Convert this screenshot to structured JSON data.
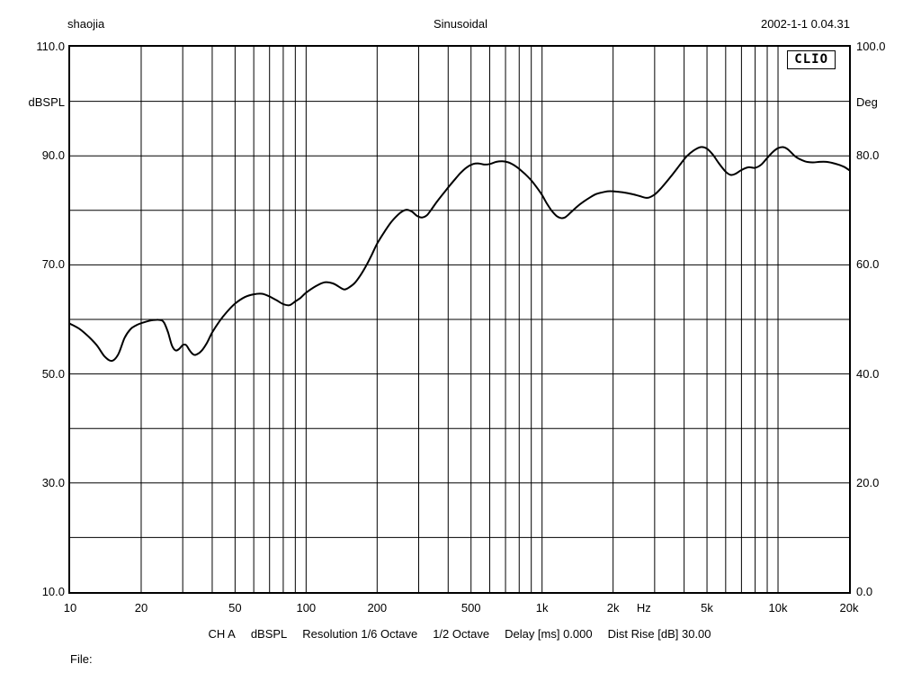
{
  "header": {
    "left": "shaojia",
    "center": "Sinusoidal",
    "right": "2002-1-1 0.04.31"
  },
  "logo": "CLIO",
  "status_bar": {
    "items": [
      "CH A",
      "dBSPL",
      "Resolution 1/6 Octave",
      "1/2 Octave",
      "Delay [ms] 0.000",
      "Dist Rise [dB] 30.00"
    ]
  },
  "file_label": "File:",
  "chart_data": {
    "type": "line",
    "title": "Sinusoidal",
    "grid": true,
    "x": {
      "scale": "log",
      "range": [
        10,
        20000
      ],
      "unit": "Hz",
      "unit_f": 2700,
      "ticks": [
        {
          "f": 10,
          "label": "10"
        },
        {
          "f": 20,
          "label": "20"
        },
        {
          "f": 50,
          "label": "50"
        },
        {
          "f": 100,
          "label": "100"
        },
        {
          "f": 200,
          "label": "200"
        },
        {
          "f": 500,
          "label": "500"
        },
        {
          "f": 1000,
          "label": "1k"
        },
        {
          "f": 2000,
          "label": "2k"
        },
        {
          "f": 2700,
          "label": "Hz"
        },
        {
          "f": 5000,
          "label": "5k"
        },
        {
          "f": 10000,
          "label": "10k"
        },
        {
          "f": 20000,
          "label": "20k"
        }
      ]
    },
    "y_left": {
      "unit": "dBSPL",
      "range": [
        10,
        110
      ],
      "grid_step": 10,
      "ticks": [
        {
          "v": 110,
          "label": "110.0"
        },
        {
          "v": 90,
          "label": "90.0"
        },
        {
          "v": 70,
          "label": "70.0"
        },
        {
          "v": 50,
          "label": "50.0"
        },
        {
          "v": 30,
          "label": "30.0"
        },
        {
          "v": 10,
          "label": "10.0"
        }
      ]
    },
    "y_right": {
      "unit": "Deg",
      "range": [
        0,
        100
      ],
      "ticks": [
        {
          "v": 100,
          "label": "100.0"
        },
        {
          "v": 80,
          "label": "80.0"
        },
        {
          "v": 60,
          "label": "60.0"
        },
        {
          "v": 40,
          "label": "40.0"
        },
        {
          "v": 20,
          "label": "20.0"
        },
        {
          "v": 0,
          "label": "0.0"
        }
      ]
    },
    "series": [
      {
        "name": "CH A dBSPL",
        "color": "#000000",
        "points": [
          [
            10,
            59.2
          ],
          [
            11,
            58.2
          ],
          [
            12,
            56.8
          ],
          [
            13,
            55.2
          ],
          [
            14,
            53.2
          ],
          [
            15,
            52.4
          ],
          [
            16,
            53.6
          ],
          [
            17,
            56.6
          ],
          [
            18,
            58.2
          ],
          [
            19,
            58.9
          ],
          [
            20,
            59.3
          ],
          [
            22,
            59.8
          ],
          [
            24,
            59.9
          ],
          [
            25,
            59.4
          ],
          [
            26,
            57.6
          ],
          [
            27,
            55.2
          ],
          [
            28,
            54.3
          ],
          [
            29,
            54.6
          ],
          [
            30,
            55.3
          ],
          [
            31,
            55.3
          ],
          [
            32,
            54.4
          ],
          [
            33,
            53.7
          ],
          [
            34,
            53.5
          ],
          [
            36,
            54.2
          ],
          [
            38,
            55.7
          ],
          [
            40,
            57.6
          ],
          [
            43,
            59.7
          ],
          [
            46,
            61.3
          ],
          [
            50,
            62.9
          ],
          [
            55,
            64.1
          ],
          [
            60,
            64.6
          ],
          [
            65,
            64.7
          ],
          [
            70,
            64.2
          ],
          [
            75,
            63.5
          ],
          [
            80,
            62.8
          ],
          [
            85,
            62.6
          ],
          [
            90,
            63.3
          ],
          [
            95,
            64.0
          ],
          [
            100,
            64.9
          ],
          [
            110,
            66.1
          ],
          [
            120,
            66.8
          ],
          [
            130,
            66.6
          ],
          [
            140,
            65.8
          ],
          [
            145,
            65.5
          ],
          [
            150,
            65.7
          ],
          [
            160,
            66.6
          ],
          [
            170,
            68.1
          ],
          [
            180,
            69.9
          ],
          [
            190,
            71.9
          ],
          [
            200,
            73.9
          ],
          [
            215,
            76.1
          ],
          [
            230,
            77.9
          ],
          [
            250,
            79.5
          ],
          [
            265,
            80.1
          ],
          [
            280,
            79.8
          ],
          [
            295,
            79.0
          ],
          [
            310,
            78.7
          ],
          [
            325,
            79.1
          ],
          [
            340,
            80.2
          ],
          [
            360,
            81.7
          ],
          [
            390,
            83.6
          ],
          [
            420,
            85.3
          ],
          [
            450,
            86.8
          ],
          [
            480,
            87.9
          ],
          [
            510,
            88.5
          ],
          [
            540,
            88.6
          ],
          [
            570,
            88.4
          ],
          [
            600,
            88.5
          ],
          [
            640,
            88.9
          ],
          [
            680,
            89.0
          ],
          [
            720,
            88.8
          ],
          [
            760,
            88.3
          ],
          [
            800,
            87.6
          ],
          [
            850,
            86.6
          ],
          [
            900,
            85.5
          ],
          [
            950,
            84.2
          ],
          [
            1000,
            82.8
          ],
          [
            1050,
            81.2
          ],
          [
            1100,
            79.9
          ],
          [
            1150,
            79.0
          ],
          [
            1200,
            78.6
          ],
          [
            1250,
            78.7
          ],
          [
            1300,
            79.3
          ],
          [
            1400,
            80.6
          ],
          [
            1500,
            81.6
          ],
          [
            1600,
            82.4
          ],
          [
            1700,
            83.0
          ],
          [
            1800,
            83.3
          ],
          [
            1900,
            83.5
          ],
          [
            2000,
            83.5
          ],
          [
            2200,
            83.3
          ],
          [
            2400,
            83.0
          ],
          [
            2600,
            82.6
          ],
          [
            2800,
            82.3
          ],
          [
            3000,
            82.9
          ],
          [
            3200,
            84.1
          ],
          [
            3500,
            86.1
          ],
          [
            3800,
            88.1
          ],
          [
            4100,
            89.9
          ],
          [
            4400,
            91.0
          ],
          [
            4700,
            91.6
          ],
          [
            5000,
            91.3
          ],
          [
            5300,
            90.2
          ],
          [
            5600,
            88.7
          ],
          [
            6000,
            87.1
          ],
          [
            6300,
            86.5
          ],
          [
            6600,
            86.7
          ],
          [
            7000,
            87.4
          ],
          [
            7500,
            87.9
          ],
          [
            8000,
            87.8
          ],
          [
            8500,
            88.4
          ],
          [
            9000,
            89.6
          ],
          [
            9500,
            90.7
          ],
          [
            10000,
            91.4
          ],
          [
            10500,
            91.6
          ],
          [
            11000,
            91.2
          ],
          [
            11500,
            90.4
          ],
          [
            12000,
            89.7
          ],
          [
            13000,
            89.0
          ],
          [
            14000,
            88.8
          ],
          [
            15000,
            88.9
          ],
          [
            16000,
            88.9
          ],
          [
            17000,
            88.7
          ],
          [
            18000,
            88.4
          ],
          [
            19000,
            88.0
          ],
          [
            20000,
            87.4
          ]
        ]
      }
    ]
  }
}
